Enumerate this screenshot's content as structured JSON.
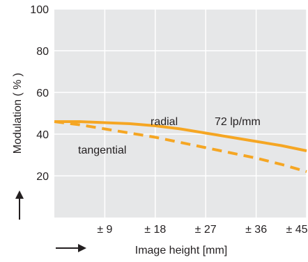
{
  "chart_data": {
    "type": "line",
    "title": "",
    "xlabel": "Image height [mm]",
    "ylabel": "Modulation ( % )",
    "xlim": [
      0,
      45
    ],
    "ylim": [
      0,
      100
    ],
    "x_ticks": [
      9,
      18,
      27,
      36,
      45
    ],
    "x_tick_labels": [
      "± 9",
      "± 18",
      "± 27",
      "± 36",
      "± 45"
    ],
    "y_ticks": [
      20,
      40,
      60,
      80,
      100
    ],
    "y_tick_labels": [
      "20",
      "40",
      "60",
      "80",
      "100"
    ],
    "grid": true,
    "annotation": "72 lp/mm",
    "series": [
      {
        "name": "radial",
        "style": "solid",
        "color": "#f5a623",
        "x": [
          0,
          4.5,
          9,
          13.5,
          18,
          22.5,
          27,
          31.5,
          36,
          40.5,
          45
        ],
        "y": [
          46,
          46,
          45.5,
          45,
          44,
          42.5,
          40.5,
          38.5,
          36.5,
          34.5,
          32
        ]
      },
      {
        "name": "tangential",
        "style": "dashed",
        "color": "#f5a623",
        "x": [
          0,
          4.5,
          9,
          13.5,
          18,
          22.5,
          27,
          31.5,
          36,
          40.5,
          45
        ],
        "y": [
          46,
          44.5,
          42.5,
          40.5,
          38.5,
          36,
          33.5,
          31,
          28.5,
          25.5,
          22
        ]
      }
    ]
  }
}
